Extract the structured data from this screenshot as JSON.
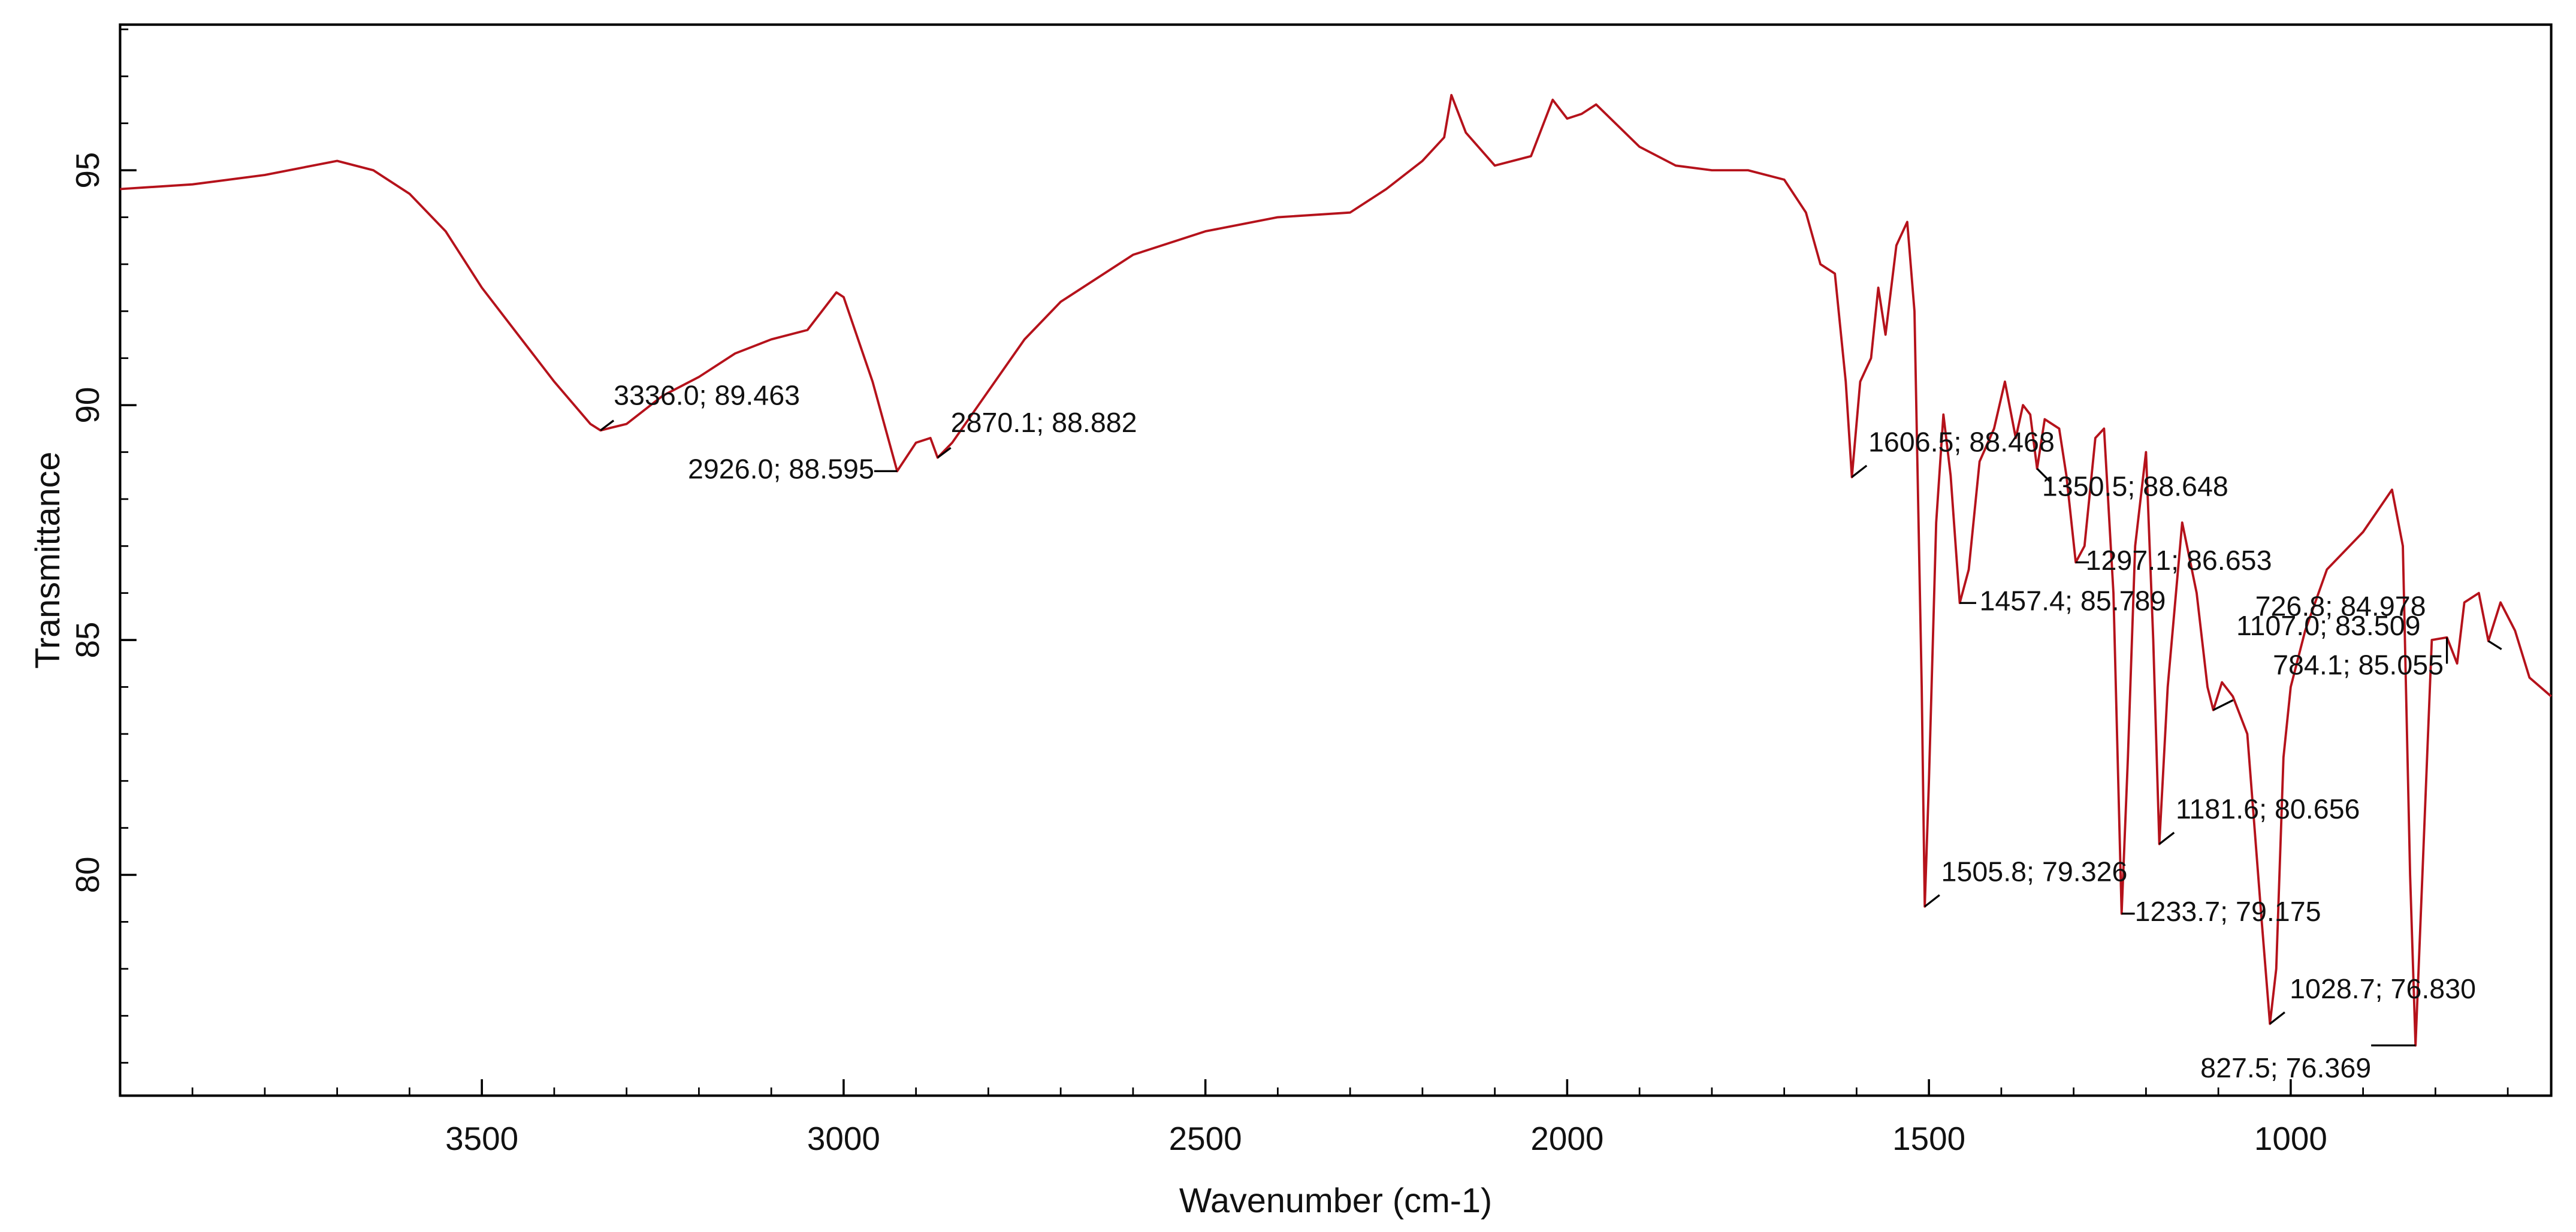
{
  "chart_data": {
    "type": "line",
    "x_label": "Wavenumber (cm-1)",
    "y_label": "Transmittance",
    "color": "#b5121b",
    "xlim": [
      4000,
      640
    ],
    "ylim": [
      75.3,
      98.1
    ],
    "xticks": [
      3500,
      3000,
      2500,
      2000,
      1500,
      1000
    ],
    "yticks": [
      80,
      85,
      90,
      95
    ],
    "x": [
      4000,
      3900,
      3800,
      3700,
      3650,
      3600,
      3550,
      3500,
      3450,
      3400,
      3350,
      3336.0,
      3300,
      3250,
      3200,
      3150,
      3100,
      3050,
      3010,
      3000,
      2960,
      2926.0,
      2900,
      2880,
      2870.1,
      2850,
      2800,
      2750,
      2700,
      2600,
      2500,
      2400,
      2300,
      2250,
      2200,
      2170,
      2160,
      2140,
      2100,
      2050,
      2020,
      2000,
      1980,
      1960,
      1900,
      1850,
      1800,
      1750,
      1700,
      1670,
      1650,
      1630,
      1615,
      1606.5,
      1595,
      1580,
      1570,
      1560,
      1545,
      1530,
      1520,
      1510,
      1505.8,
      1500,
      1490,
      1480,
      1470,
      1457.4,
      1445,
      1430,
      1410,
      1395,
      1380,
      1370,
      1360,
      1350.5,
      1340,
      1320,
      1310,
      1297.1,
      1285,
      1270,
      1258,
      1245,
      1233.7,
      1225,
      1215,
      1200,
      1190,
      1181.6,
      1170,
      1150,
      1130,
      1115,
      1107.0,
      1095,
      1080,
      1060,
      1040,
      1028.7,
      1020,
      1010,
      1000,
      980,
      950,
      900,
      860,
      845,
      835,
      827.5,
      818,
      805,
      784.1,
      770,
      760,
      740,
      726.8,
      710,
      690,
      670,
      640
    ],
    "values": [
      94.6,
      94.7,
      94.9,
      95.2,
      95.0,
      94.5,
      93.7,
      92.5,
      91.5,
      90.5,
      89.6,
      89.463,
      89.6,
      90.2,
      90.6,
      91.1,
      91.4,
      91.6,
      92.4,
      92.3,
      90.5,
      88.595,
      89.2,
      89.3,
      88.882,
      89.2,
      90.3,
      91.4,
      92.2,
      93.2,
      93.7,
      94.0,
      94.1,
      94.6,
      95.2,
      95.7,
      96.6,
      95.8,
      95.1,
      95.3,
      96.5,
      96.1,
      96.2,
      96.4,
      95.5,
      95.1,
      95.0,
      95.0,
      94.8,
      94.1,
      93.0,
      92.8,
      90.5,
      88.468,
      90.5,
      91.0,
      92.5,
      91.5,
      93.4,
      93.9,
      92.0,
      84.0,
      79.326,
      82.0,
      87.5,
      89.8,
      88.5,
      85.789,
      86.5,
      88.8,
      89.5,
      90.5,
      89.3,
      90.0,
      89.8,
      88.648,
      89.7,
      89.5,
      88.5,
      86.653,
      87.0,
      89.3,
      89.5,
      86.0,
      79.175,
      82.5,
      87.0,
      89.0,
      85.0,
      80.656,
      84.0,
      87.5,
      86.0,
      84.0,
      83.509,
      84.1,
      83.8,
      83.0,
      79.0,
      76.83,
      78.0,
      82.5,
      84.0,
      85.2,
      86.5,
      87.3,
      88.2,
      87.0,
      80.0,
      76.369,
      80.0,
      85.0,
      85.055,
      84.5,
      85.8,
      86.0,
      84.978,
      85.8,
      85.2,
      84.2,
      83.8
    ],
    "annotations": [
      {
        "x": 3336.0,
        "y": 89.463,
        "label": "3336.0; 89.463"
      },
      {
        "x": 2926.0,
        "y": 88.595,
        "label": "2926.0; 88.595"
      },
      {
        "x": 2870.1,
        "y": 88.882,
        "label": "2870.1; 88.882"
      },
      {
        "x": 1606.5,
        "y": 88.468,
        "label": "1606.5; 88.468"
      },
      {
        "x": 1350.5,
        "y": 88.648,
        "label": "1350.5; 88.648"
      },
      {
        "x": 1297.1,
        "y": 86.653,
        "label": "1297.1; 86.653"
      },
      {
        "x": 1457.4,
        "y": 85.789,
        "label": "1457.4; 85.789"
      },
      {
        "x": 726.8,
        "y": 84.978,
        "label": "726.8; 84.978"
      },
      {
        "x": 1107.0,
        "y": 83.509,
        "label": "1107.0; 83.509"
      },
      {
        "x": 784.1,
        "y": 85.055,
        "label": "784.1; 85.055"
      },
      {
        "x": 1181.6,
        "y": 80.656,
        "label": "1181.6; 80.656"
      },
      {
        "x": 1505.8,
        "y": 79.326,
        "label": "1505.8; 79.326"
      },
      {
        "x": 1233.7,
        "y": 79.175,
        "label": "1233.7; 79.175"
      },
      {
        "x": 1028.7,
        "y": 76.83,
        "label": "1028.7; 76.830"
      },
      {
        "x": 827.5,
        "y": 76.369,
        "label": "827.5; 76.369"
      }
    ]
  }
}
